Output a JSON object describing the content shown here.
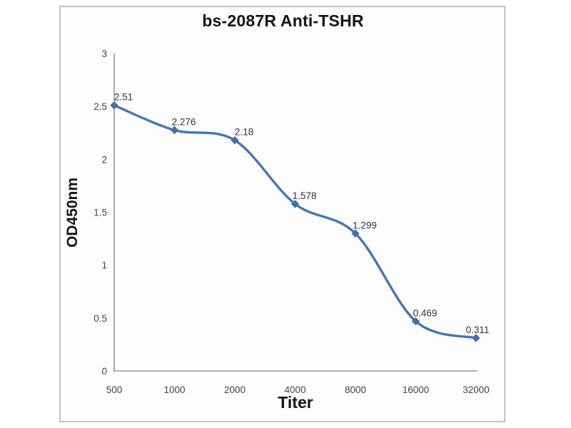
{
  "chart_data": {
    "type": "line",
    "title": "bs-2087R Anti-TSHR",
    "xlabel": "Titer",
    "ylabel": "OD450nm",
    "categories": [
      "500",
      "1000",
      "2000",
      "4000",
      "8000",
      "16000",
      "32000"
    ],
    "values": [
      2.51,
      2.276,
      2.18,
      1.578,
      1.299,
      0.469,
      0.311
    ],
    "point_labels": [
      "2.51",
      "2.276",
      "2.18",
      "1.578",
      "1.299",
      "0.469",
      "0.311"
    ],
    "y_ticks": [
      "0",
      "0.5",
      "1",
      "1.5",
      "2",
      "2.5",
      "3"
    ],
    "ylim": [
      0,
      3
    ],
    "grid": false,
    "legend": "none",
    "line_smooth": true,
    "marker": "diamond"
  },
  "colors": {
    "line": "#4576b3",
    "marker": "#4270aa",
    "axis": "#9b9b9b",
    "frame_border": "#c3c3c3",
    "background": "#fdfdfd"
  }
}
